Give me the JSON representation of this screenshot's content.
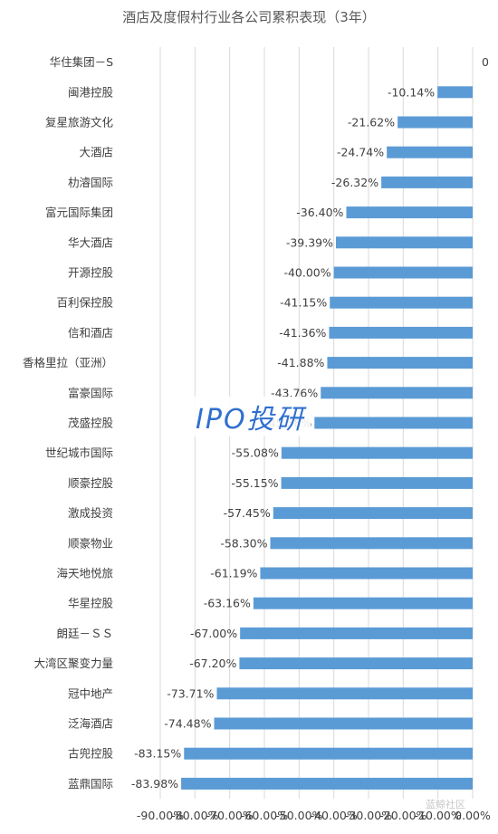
{
  "chart_data": {
    "type": "bar",
    "orientation": "horizontal",
    "title": "酒店及度假村行业各公司累积表现（3年）",
    "categories": [
      "华住集团－S",
      "闽港控股",
      "复星旅游文化",
      "大酒店",
      "朸濬国际",
      "富元国际集团",
      "华大酒店",
      "开源控股",
      "百利保控股",
      "信和酒店",
      "香格里拉（亚洲）",
      "富豪国际",
      "茂盛控股",
      "世纪城市国际",
      "顺豪控股",
      "激成投资",
      "顺豪物业",
      "海天地悦旅",
      "华星控股",
      "朗廷－ＳＳ",
      "大湾区聚变力量",
      "冠中地产",
      "泛海酒店",
      "古兜控股",
      "蓝鼎国际"
    ],
    "values": [
      0,
      -10.14,
      -21.62,
      -24.74,
      -26.32,
      -36.4,
      -39.39,
      -40.0,
      -41.15,
      -41.36,
      -41.88,
      -43.76,
      -45.58,
      -55.08,
      -55.15,
      -57.45,
      -58.3,
      -61.19,
      -63.16,
      -67.0,
      -67.2,
      -73.71,
      -74.48,
      -83.15,
      -83.98
    ],
    "data_labels": [
      "0",
      "-10.14%",
      "-21.62%",
      "-24.74%",
      "-26.32%",
      "-36.40%",
      "-39.39%",
      "-40.00%",
      "-41.15%",
      "-41.36%",
      "-41.88%",
      "-43.76%",
      "-45.58%",
      "-55.08%",
      "-55.15%",
      "-57.45%",
      "-58.30%",
      "-61.19%",
      "-63.16%",
      "-67.00%",
      "-67.20%",
      "-73.71%",
      "-74.48%",
      "-83.15%",
      "-83.98%"
    ],
    "xlim": [
      -90,
      0
    ],
    "x_ticks": [
      -90,
      -80,
      -70,
      -60,
      -50,
      -40,
      -30,
      -20,
      -10,
      0
    ],
    "x_tick_labels": [
      "-90.00%",
      "-80.00%",
      "-70.00%",
      "-60.00%",
      "-50.00%",
      "-40.00%",
      "-30.00%",
      "-20.00%",
      "-10.00%",
      "0.00%"
    ],
    "grid": true,
    "bar_color": "#5b9bd5"
  },
  "watermark": "IPO投研",
  "corner_mark": "蓝鲸社区"
}
